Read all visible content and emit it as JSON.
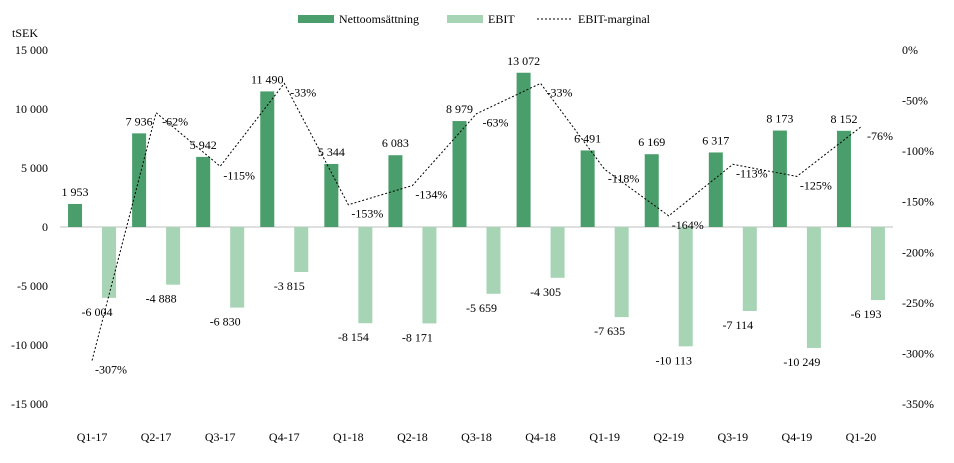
{
  "chart_data": {
    "type": "bar",
    "y_unit_label": "tSEK",
    "categories": [
      "Q1-17",
      "Q2-17",
      "Q3-17",
      "Q4-17",
      "Q1-18",
      "Q2-18",
      "Q3-18",
      "Q4-18",
      "Q1-19",
      "Q2-19",
      "Q3-19",
      "Q4-19",
      "Q1-20"
    ],
    "series": [
      {
        "name": "Nettoomsättning",
        "type": "bar",
        "axis": "left",
        "color": "#4a9e6b",
        "values": [
          1953,
          7936,
          5942,
          11490,
          5344,
          6083,
          8979,
          13072,
          6491,
          6169,
          6317,
          8173,
          8152
        ],
        "labels": [
          "1 953",
          "7 936",
          "5 942",
          "11 490",
          "5 344",
          "6 083",
          "8 979",
          "13 072",
          "6 491",
          "6 169",
          "6 317",
          "8 173",
          "8 152"
        ]
      },
      {
        "name": "EBIT",
        "type": "bar",
        "axis": "left",
        "color": "#a6d4b5",
        "values": [
          -6004,
          -4888,
          -6830,
          -3815,
          -8154,
          -8171,
          -5659,
          -4305,
          -7635,
          -10113,
          -7114,
          -10249,
          -6193
        ],
        "labels": [
          "-6 004",
          "-4 888",
          "-6 830",
          "-3 815",
          "-8 154",
          "-8 171",
          "-5 659",
          "-4 305",
          "-7 635",
          "-10 113",
          "-7 114",
          "-10 249",
          "-6 193"
        ]
      },
      {
        "name": "EBIT-marginal",
        "type": "line",
        "axis": "right",
        "color": "#000000",
        "style": "dotted",
        "values": [
          -307,
          -62,
          -115,
          -33,
          -153,
          -134,
          -63,
          -33,
          -118,
          -164,
          -113,
          -125,
          -76
        ],
        "labels": [
          "-307%",
          "-62%",
          "-115%",
          "-33%",
          "-153%",
          "-134%",
          "-63%",
          "-33%",
          "-118%",
          "-164%",
          "-113%",
          "-125%",
          "-76%"
        ]
      }
    ],
    "y_left": {
      "ylim": [
        -15000,
        15000
      ],
      "ticks": [
        15000,
        10000,
        5000,
        0,
        -5000,
        -10000,
        -15000
      ],
      "tick_labels": [
        "15 000",
        "10 000",
        "5 000",
        "0",
        "-5 000",
        "-10 000",
        "-15 000"
      ]
    },
    "y_right": {
      "ylim": [
        -350,
        0
      ],
      "ticks": [
        0,
        -50,
        -100,
        -150,
        -200,
        -250,
        -300,
        -350
      ],
      "tick_labels": [
        "0%",
        "-50%",
        "-100%",
        "-150%",
        "-200%",
        "-250%",
        "-300%",
        "-350%"
      ]
    },
    "legend_position": "top-center",
    "grid": false
  }
}
